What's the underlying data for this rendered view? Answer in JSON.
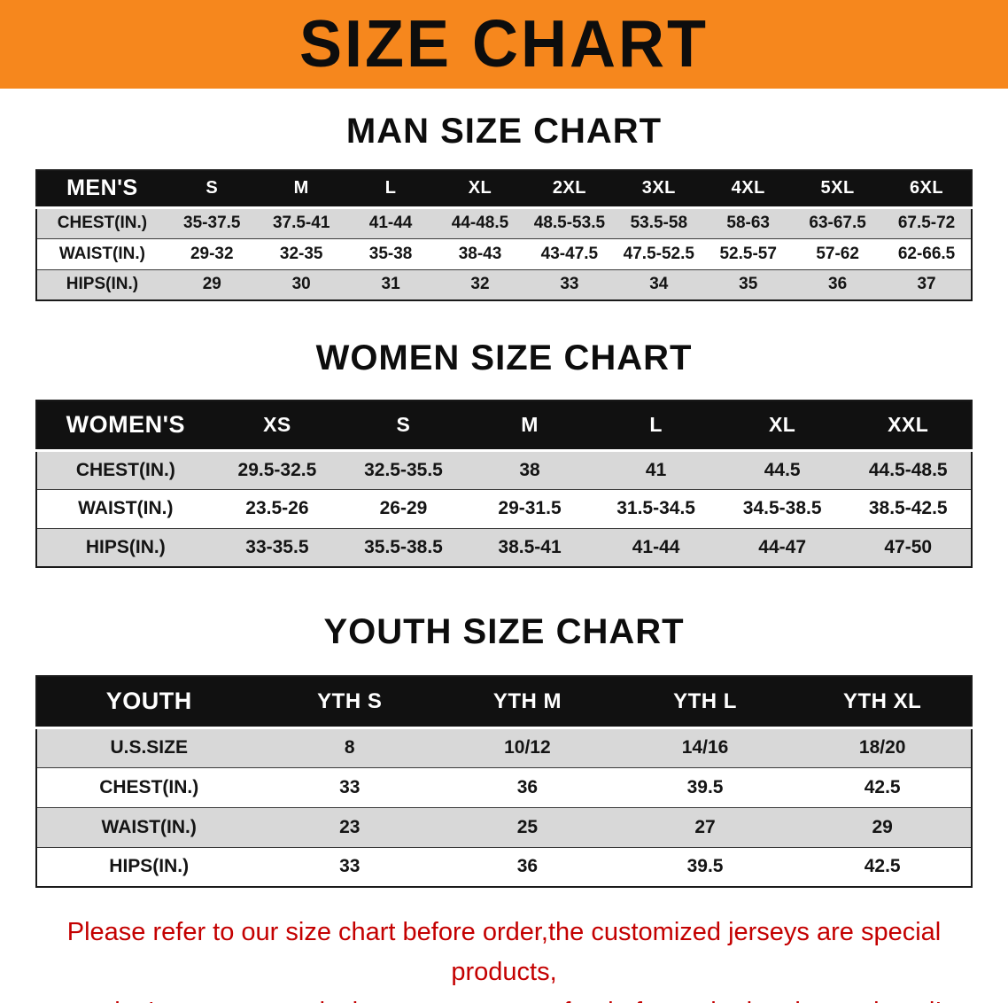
{
  "banner": {
    "title": "SIZE CHART",
    "bg_color": "#f6871d"
  },
  "sections": [
    {
      "id": "men",
      "heading": "MAN SIZE CHART",
      "table": {
        "header": [
          "MEN'S",
          "S",
          "M",
          "L",
          "XL",
          "2XL",
          "3XL",
          "4XL",
          "5XL",
          "6XL"
        ],
        "rows": [
          {
            "label": "CHEST(IN.)",
            "values": [
              "35-37.5",
              "37.5-41",
              "41-44",
              "44-48.5",
              "48.5-53.5",
              "53.5-58",
              "58-63",
              "63-67.5",
              "67.5-72"
            ]
          },
          {
            "label": "WAIST(IN.)",
            "values": [
              "29-32",
              "32-35",
              "35-38",
              "38-43",
              "43-47.5",
              "47.5-52.5",
              "52.5-57",
              "57-62",
              "62-66.5"
            ]
          },
          {
            "label": "HIPS(IN.)",
            "values": [
              "29",
              "30",
              "31",
              "32",
              "33",
              "34",
              "35",
              "36",
              "37"
            ]
          }
        ]
      }
    },
    {
      "id": "women",
      "heading": "WOMEN SIZE CHART",
      "table": {
        "header": [
          "WOMEN'S",
          "XS",
          "S",
          "M",
          "L",
          "XL",
          "XXL"
        ],
        "rows": [
          {
            "label": "CHEST(IN.)",
            "values": [
              "29.5-32.5",
              "32.5-35.5",
              "38",
              "41",
              "44.5",
              "44.5-48.5"
            ]
          },
          {
            "label": "WAIST(IN.)",
            "values": [
              "23.5-26",
              "26-29",
              "29-31.5",
              "31.5-34.5",
              "34.5-38.5",
              "38.5-42.5"
            ]
          },
          {
            "label": "HIPS(IN.)",
            "values": [
              "33-35.5",
              "35.5-38.5",
              "38.5-41",
              "41-44",
              "44-47",
              "47-50"
            ]
          }
        ]
      }
    },
    {
      "id": "youth",
      "heading": "YOUTH SIZE CHART",
      "table": {
        "header": [
          "YOUTH",
          "YTH S",
          "YTH M",
          "YTH L",
          "YTH XL"
        ],
        "rows": [
          {
            "label": "U.S.SIZE",
            "values": [
              "8",
              "10/12",
              "14/16",
              "18/20"
            ]
          },
          {
            "label": "CHEST(IN.)",
            "values": [
              "33",
              "36",
              "39.5",
              "42.5"
            ]
          },
          {
            "label": "WAIST(IN.)",
            "values": [
              "23",
              "25",
              "27",
              "29"
            ]
          },
          {
            "label": "HIPS(IN.)",
            "values": [
              "33",
              "36",
              "39.5",
              "42.5"
            ]
          }
        ]
      }
    }
  ],
  "footer": {
    "line1": "Please refer to our size chart before order,the customized jerseys are special products,",
    "line2": "we don't accept cancel, change, teturn or refund after order has been placed!",
    "text_color": "#c40000"
  }
}
